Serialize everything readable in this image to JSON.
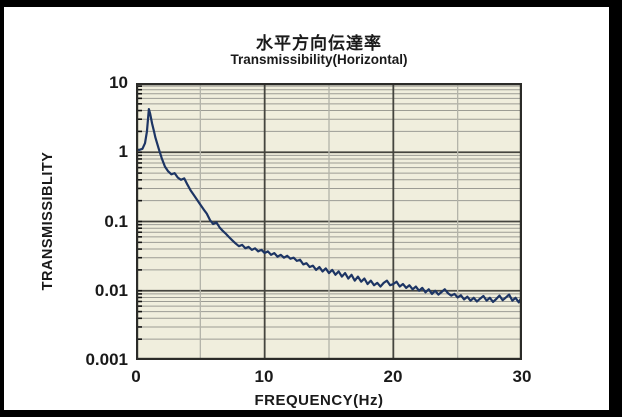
{
  "window": {
    "frame_color": "#000000",
    "canvas_color": "#ffffff"
  },
  "chart": {
    "title_ja": "水平方向伝達率",
    "subtitle_en": "Transmissibility(Horizontal)",
    "y_axis_title": "TRANSMISSIBLITY",
    "x_axis_title": "FREQUENCY(Hz)",
    "y_ticks": [
      {
        "value": 10,
        "label": "10"
      },
      {
        "value": 1,
        "label": "1"
      },
      {
        "value": 0.1,
        "label": "0.1"
      },
      {
        "value": 0.01,
        "label": "0.01"
      },
      {
        "value": 0.001,
        "label": "0.001"
      }
    ],
    "x_ticks": [
      {
        "value": 0,
        "label": "0"
      },
      {
        "value": 10,
        "label": "10"
      },
      {
        "value": 20,
        "label": "20"
      },
      {
        "value": 30,
        "label": "30"
      }
    ],
    "colors": {
      "plot_bg": "#f0eedd",
      "grid_minor": "#9c9c94",
      "grid_major": "#45453f",
      "vgrid_minor": "#b3b3a9",
      "vgrid_major": "#45453f",
      "border": "#2b2b28",
      "line": "#1d3564",
      "tick": "#111111",
      "text": "#1a1a1a"
    }
  },
  "chart_data": {
    "type": "line",
    "title": "水平方向伝達率",
    "subtitle": "Transmissibility(Horizontal)",
    "xlabel": "FREQUENCY(Hz)",
    "ylabel": "TRANSMISSIBLITY",
    "x_range": [
      0,
      30
    ],
    "y_scale": "log",
    "y_range": [
      0.001,
      10
    ],
    "grid": true,
    "x_gridlines_minor": [
      5,
      15,
      25
    ],
    "x_gridlines_major": [
      10,
      20
    ],
    "legend": "none",
    "series": [
      {
        "name": "transmissibility-horizontal",
        "color": "#1d3564",
        "peak": {
          "frequency_hz": 1.0,
          "transmissibility": 4.2
        },
        "points": [
          [
            0,
            1.1
          ],
          [
            0.25,
            1.08
          ],
          [
            0.5,
            1.12
          ],
          [
            0.7,
            1.35
          ],
          [
            0.85,
            2.0
          ],
          [
            1.0,
            4.2
          ],
          [
            1.1,
            3.6
          ],
          [
            1.25,
            2.6
          ],
          [
            1.4,
            2.0
          ],
          [
            1.5,
            1.65
          ],
          [
            1.75,
            1.15
          ],
          [
            2.0,
            0.82
          ],
          [
            2.25,
            0.62
          ],
          [
            2.5,
            0.53
          ],
          [
            2.75,
            0.48
          ],
          [
            3.0,
            0.5
          ],
          [
            3.25,
            0.43
          ],
          [
            3.5,
            0.4
          ],
          [
            3.75,
            0.42
          ],
          [
            4.0,
            0.34
          ],
          [
            4.25,
            0.28
          ],
          [
            4.5,
            0.24
          ],
          [
            4.75,
            0.205
          ],
          [
            5.0,
            0.175
          ],
          [
            5.25,
            0.15
          ],
          [
            5.5,
            0.13
          ],
          [
            5.75,
            0.105
          ],
          [
            6.0,
            0.092
          ],
          [
            6.25,
            0.097
          ],
          [
            6.5,
            0.082
          ],
          [
            6.75,
            0.073
          ],
          [
            7.0,
            0.066
          ],
          [
            7.25,
            0.059
          ],
          [
            7.5,
            0.053
          ],
          [
            7.75,
            0.048
          ],
          [
            8.0,
            0.044
          ],
          [
            8.25,
            0.046
          ],
          [
            8.5,
            0.041
          ],
          [
            8.75,
            0.043
          ],
          [
            9.0,
            0.039
          ],
          [
            9.25,
            0.041
          ],
          [
            9.5,
            0.037
          ],
          [
            9.75,
            0.039
          ],
          [
            10.0,
            0.035
          ],
          [
            10.25,
            0.037
          ],
          [
            10.5,
            0.033
          ],
          [
            10.75,
            0.035
          ],
          [
            11.0,
            0.031
          ],
          [
            11.25,
            0.033
          ],
          [
            11.5,
            0.03
          ],
          [
            11.75,
            0.032
          ],
          [
            12.0,
            0.029
          ],
          [
            12.25,
            0.03
          ],
          [
            12.5,
            0.027
          ],
          [
            12.75,
            0.028
          ],
          [
            13.0,
            0.024
          ],
          [
            13.25,
            0.025
          ],
          [
            13.5,
            0.022
          ],
          [
            13.75,
            0.023
          ],
          [
            14.0,
            0.02
          ],
          [
            14.25,
            0.022
          ],
          [
            14.5,
            0.019
          ],
          [
            14.75,
            0.021
          ],
          [
            15.0,
            0.018
          ],
          [
            15.25,
            0.02
          ],
          [
            15.5,
            0.017
          ],
          [
            15.75,
            0.019
          ],
          [
            16.0,
            0.016
          ],
          [
            16.25,
            0.018
          ],
          [
            16.5,
            0.015
          ],
          [
            16.75,
            0.017
          ],
          [
            17.0,
            0.014
          ],
          [
            17.25,
            0.016
          ],
          [
            17.5,
            0.0135
          ],
          [
            17.75,
            0.015
          ],
          [
            18.0,
            0.0125
          ],
          [
            18.25,
            0.014
          ],
          [
            18.5,
            0.012
          ],
          [
            18.75,
            0.013
          ],
          [
            19.0,
            0.0115
          ],
          [
            19.25,
            0.013
          ],
          [
            19.5,
            0.014
          ],
          [
            19.75,
            0.012
          ],
          [
            20.0,
            0.0125
          ],
          [
            20.25,
            0.0135
          ],
          [
            20.5,
            0.0115
          ],
          [
            20.75,
            0.0125
          ],
          [
            21.0,
            0.011
          ],
          [
            21.25,
            0.012
          ],
          [
            21.5,
            0.0105
          ],
          [
            21.75,
            0.0115
          ],
          [
            22.0,
            0.01
          ],
          [
            22.25,
            0.011
          ],
          [
            22.5,
            0.0095
          ],
          [
            22.75,
            0.0105
          ],
          [
            23.0,
            0.009
          ],
          [
            23.25,
            0.01
          ],
          [
            23.5,
            0.0088
          ],
          [
            23.75,
            0.0096
          ],
          [
            24.0,
            0.0105
          ],
          [
            24.25,
            0.0092
          ],
          [
            24.5,
            0.0085
          ],
          [
            24.75,
            0.009
          ],
          [
            25.0,
            0.008
          ],
          [
            25.25,
            0.0086
          ],
          [
            25.5,
            0.0075
          ],
          [
            25.75,
            0.0082
          ],
          [
            26.0,
            0.0072
          ],
          [
            26.25,
            0.0079
          ],
          [
            26.5,
            0.007
          ],
          [
            26.75,
            0.0077
          ],
          [
            27.0,
            0.0084
          ],
          [
            27.25,
            0.0072
          ],
          [
            27.5,
            0.0079
          ],
          [
            27.75,
            0.0069
          ],
          [
            28.0,
            0.0076
          ],
          [
            28.25,
            0.0085
          ],
          [
            28.5,
            0.0073
          ],
          [
            28.75,
            0.008
          ],
          [
            29.0,
            0.0088
          ],
          [
            29.25,
            0.0072
          ],
          [
            29.5,
            0.0079
          ],
          [
            29.75,
            0.0068
          ],
          [
            30.0,
            0.0082
          ]
        ]
      }
    ]
  }
}
